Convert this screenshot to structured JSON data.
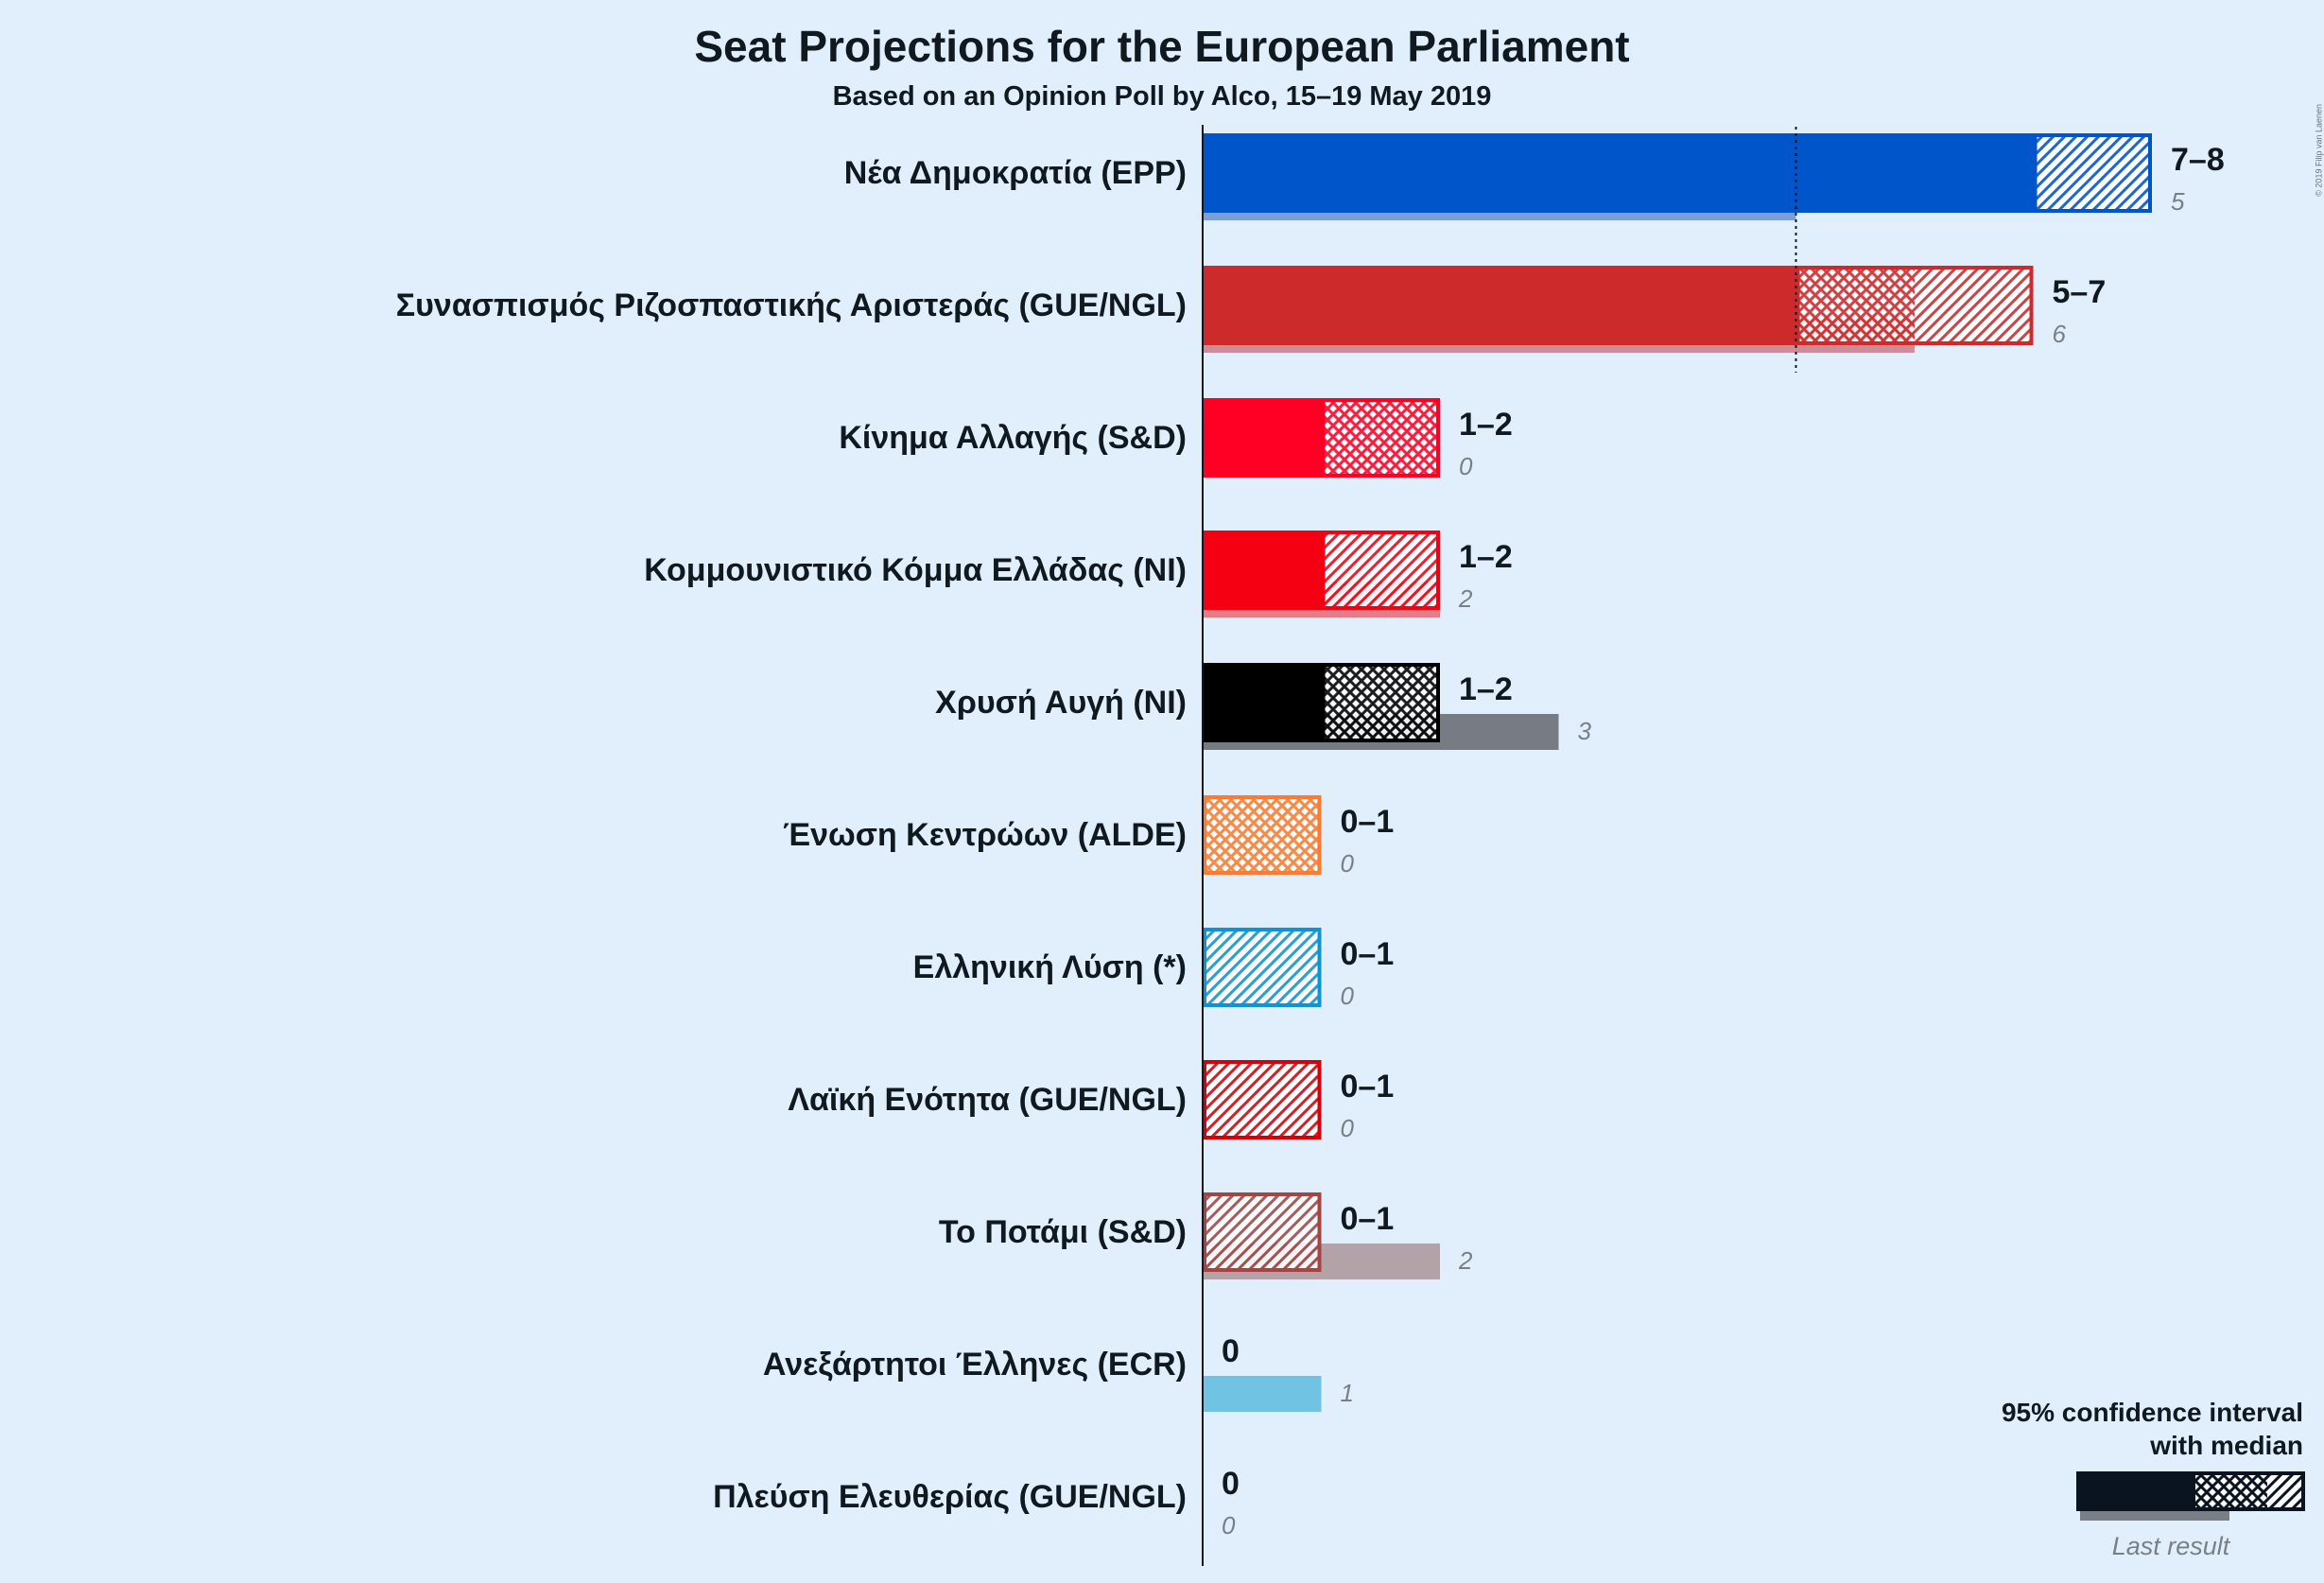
{
  "title": "Seat Projections for the European Parliament",
  "subtitle": "Based on an Opinion Poll by Alco, 15–19 May 2019",
  "copyright": "© 2019 Filip van Laenen",
  "legend": {
    "line1": "95% confidence interval",
    "line2": "with median",
    "last_result": "Last result"
  },
  "chart_data": {
    "type": "bar",
    "orientation": "horizontal",
    "title": "Seat Projections for the European Parliament",
    "subtitle": "Based on an Opinion Poll by Alco, 15–19 May 2019",
    "majority_line_seats": 5,
    "parties": [
      {
        "name": "Νέα Δημοκρατία (EPP)",
        "color": "#0155cb",
        "low": 7,
        "median": 7,
        "high": 8,
        "range_label": "7–8",
        "last": 5,
        "last_label": "5",
        "last_color": "#7d9fd8"
      },
      {
        "name": "Συνασπισμός Ριζοσπαστικής Αριστεράς (GUE/NGL)",
        "color": "#cc2a2b",
        "low": 5,
        "median": 6,
        "high": 7,
        "range_label": "5–7",
        "last": 6,
        "last_label": "6",
        "last_color": "#cc8d96"
      },
      {
        "name": "Κίνημα Αλλαγής (S&D)",
        "color": "#ff0024",
        "low": 1,
        "median": 2,
        "high": 2,
        "range_label": "1–2",
        "last": 0,
        "last_label": "0",
        "last_color": "#e8909a"
      },
      {
        "name": "Κομμουνιστικό Κόμμα Ελλάδας (NI)",
        "color": "#f50013",
        "low": 1,
        "median": 1,
        "high": 2,
        "range_label": "1–2",
        "last": 2,
        "last_label": "2",
        "last_color": "#e37d87"
      },
      {
        "name": "Χρυσή Αυγή (NI)",
        "color": "#000000",
        "low": 1,
        "median": 2,
        "high": 2,
        "range_label": "1–2",
        "last": 3,
        "last_label": "3",
        "last_color": "#777c84"
      },
      {
        "name": "Ένωση Κεντρώων (ALDE)",
        "color": "#fb7c2f",
        "low": 0,
        "median": 1,
        "high": 1,
        "range_label": "0–1",
        "last": 0,
        "last_label": "0",
        "last_color": "#f2b08a"
      },
      {
        "name": "Ελληνική Λύση (*)",
        "color": "#0d95d3",
        "low": 0,
        "median": 0,
        "high": 1,
        "range_label": "0–1",
        "last": 0,
        "last_label": "0",
        "last_color": "#80c3e6"
      },
      {
        "name": "Λαϊκή Ενότητα (GUE/NGL)",
        "color": "#d60009",
        "low": 0,
        "median": 0,
        "high": 1,
        "range_label": "0–1",
        "last": 0,
        "last_label": "0",
        "last_color": "#e08a8f"
      },
      {
        "name": "Το Ποτάμι (S&D)",
        "color": "#a54443",
        "low": 0,
        "median": 0,
        "high": 1,
        "range_label": "0–1",
        "last": 2,
        "last_label": "2",
        "last_color": "#b3a2a7"
      },
      {
        "name": "Ανεξάρτητοι Έλληνες (ECR)",
        "color": "#71c3e3",
        "low": 0,
        "median": 0,
        "high": 0,
        "range_label": "0",
        "last": 1,
        "last_label": "1",
        "last_color": "#71c3e3"
      },
      {
        "name": "Πλεύση Ελευθερίας (GUE/NGL)",
        "color": "#3a1b8b",
        "low": 0,
        "median": 0,
        "high": 0,
        "range_label": "0",
        "last": 0,
        "last_label": "0",
        "last_color": "#9d8fc4"
      }
    ]
  }
}
